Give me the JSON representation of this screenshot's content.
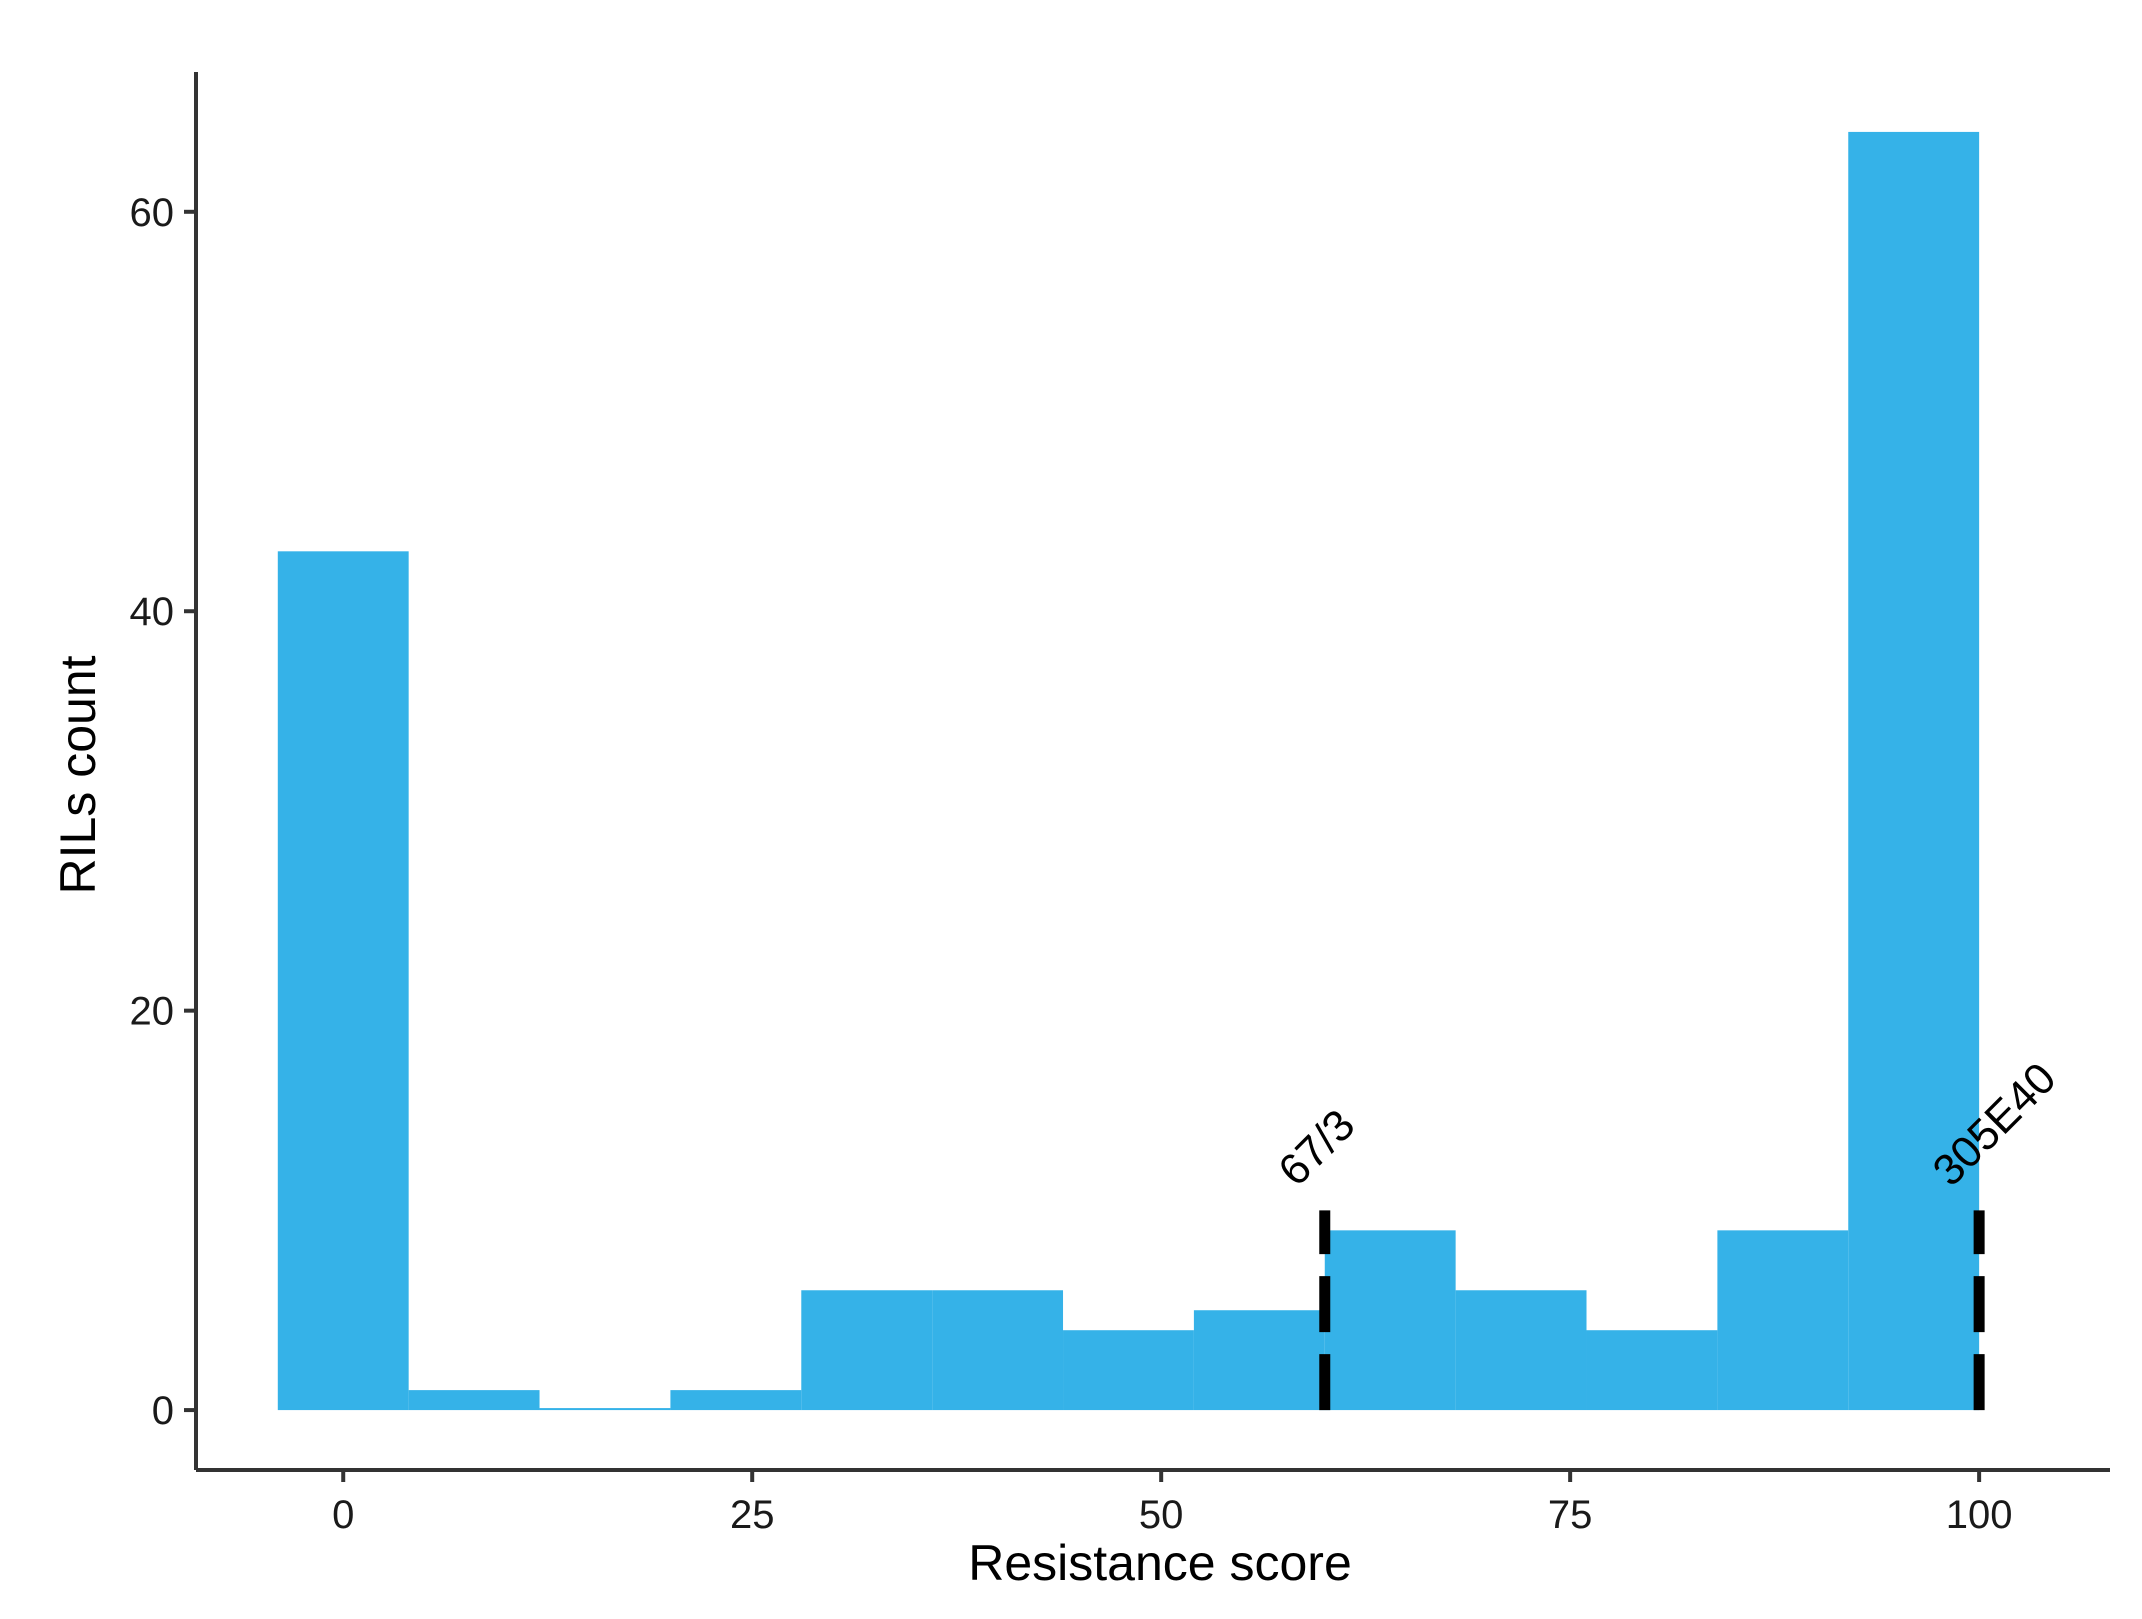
{
  "chart_data": {
    "type": "bar",
    "subtype": "histogram",
    "title": "",
    "xlabel": "Resistance score",
    "ylabel": "RILs count",
    "xlim": [
      -9,
      108
    ],
    "ylim": [
      -3,
      67
    ],
    "x_ticks": [
      0,
      25,
      50,
      75,
      100
    ],
    "y_ticks": [
      0,
      20,
      40,
      60
    ],
    "bins": [
      {
        "x0": -4,
        "x1": 4,
        "value": 43
      },
      {
        "x0": 4,
        "x1": 12,
        "value": 1
      },
      {
        "x0": 12,
        "x1": 20,
        "value": 0
      },
      {
        "x0": 20,
        "x1": 28,
        "value": 1
      },
      {
        "x0": 28,
        "x1": 36,
        "value": 6
      },
      {
        "x0": 36,
        "x1": 44,
        "value": 6
      },
      {
        "x0": 44,
        "x1": 52,
        "value": 4
      },
      {
        "x0": 52,
        "x1": 60,
        "value": 5
      },
      {
        "x0": 60,
        "x1": 68,
        "value": 9
      },
      {
        "x0": 68,
        "x1": 76,
        "value": 6
      },
      {
        "x0": 76,
        "x1": 84,
        "value": 4
      },
      {
        "x0": 84,
        "x1": 92,
        "value": 9
      },
      {
        "x0": 92,
        "x1": 100,
        "value": 64
      }
    ],
    "annotations": [
      {
        "label": "67/3",
        "x": 60,
        "y_top": 10
      },
      {
        "label": "305E40",
        "x": 100,
        "y_top": 10
      }
    ],
    "bar_color": "#35b2e8",
    "annotation_line_color": "#000000",
    "grid": false,
    "legend": "none"
  }
}
